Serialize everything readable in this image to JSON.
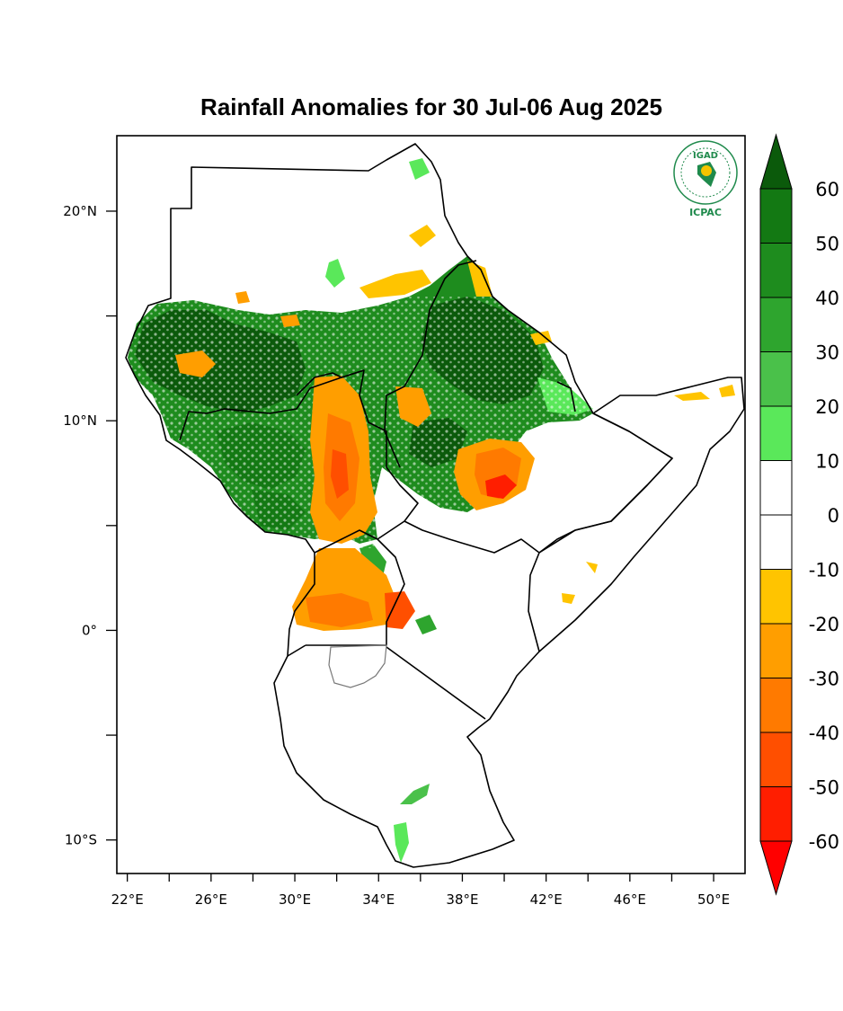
{
  "title": "Rainfall Anomalies for 30 Jul-06 Aug 2025",
  "logo": {
    "top_text": "IGAD",
    "bottom_text": "ICPAC",
    "icon": "igad-icpac-logo",
    "color": "#1f8a4c"
  },
  "map": {
    "lon_range": [
      21.5,
      51.5
    ],
    "lat_range": [
      -11.6,
      23.6
    ],
    "x_ticks": [
      {
        "lon": 22,
        "label": "22°E"
      },
      {
        "lon": 26,
        "label": "26°E"
      },
      {
        "lon": 30,
        "label": "30°E"
      },
      {
        "lon": 34,
        "label": "34°E"
      },
      {
        "lon": 38,
        "label": "38°E"
      },
      {
        "lon": 42,
        "label": "42°E"
      },
      {
        "lon": 46,
        "label": "46°E"
      },
      {
        "lon": 50,
        "label": "50°E"
      }
    ],
    "y_ticks": [
      {
        "lat": 20,
        "label": "20°N"
      },
      {
        "lat": 10,
        "label": "10°N"
      },
      {
        "lat": 0,
        "label": "0°"
      },
      {
        "lat": -10,
        "label": "10°S"
      }
    ]
  },
  "colorbar": {
    "labels": [
      "60",
      "50",
      "40",
      "30",
      "20",
      "10",
      "0",
      "-10",
      "-20",
      "-30",
      "-40",
      "-50",
      "-60"
    ],
    "colors": [
      "#0b5a0b",
      "#137913",
      "#1e8c1e",
      "#2ea52e",
      "#4ac14a",
      "#5ae85a",
      "#ffffff",
      "#ffffff",
      "#ffc400",
      "#ff9e00",
      "#ff7a00",
      "#ff4f00",
      "#ff1e00",
      "#ff0000"
    ]
  }
}
